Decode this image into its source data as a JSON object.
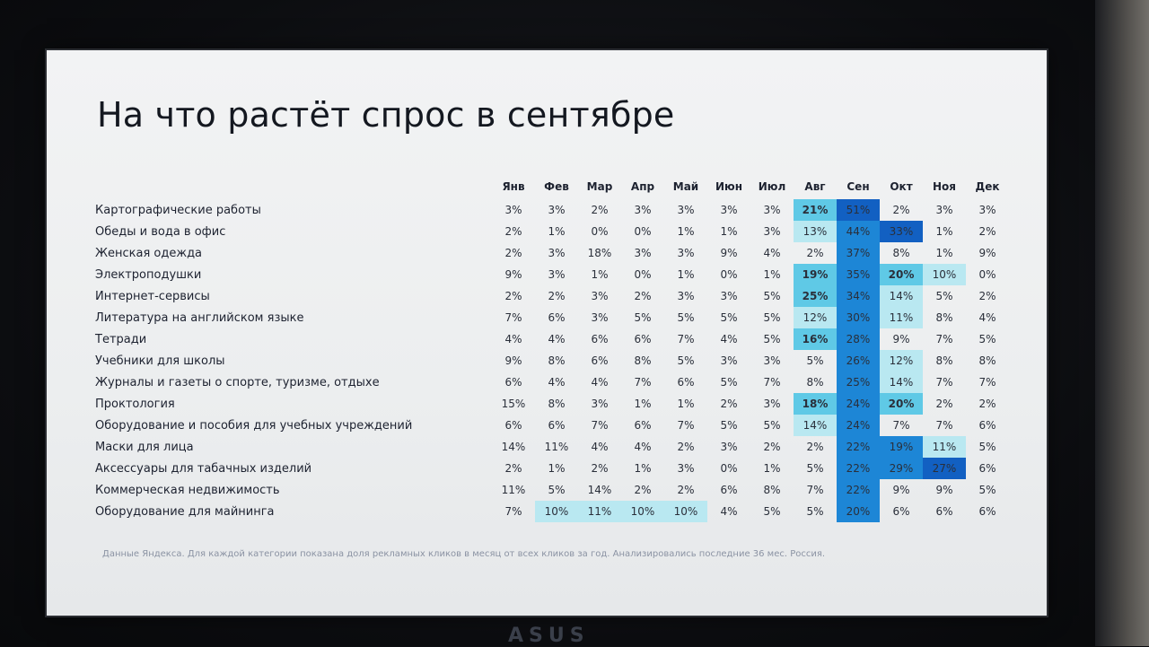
{
  "title": "На что растёт спрос в сентябре",
  "footnote": "Данные Яндекса. Для каждой категории показана доля рекламных кликов в месяц от всех кликов за год. Анализировались последние 36 мес. Россия.",
  "bezel_logo": "ASUS",
  "chart_data": {
    "type": "heatmap",
    "title": "На что растёт спрос в сентябре",
    "unit": "%",
    "columns": [
      "Янв",
      "Фев",
      "Мар",
      "Апр",
      "Май",
      "Июн",
      "Июл",
      "Авг",
      "Сен",
      "Окт",
      "Ноя",
      "Дек"
    ],
    "rows": [
      {
        "category": "Картографические работы",
        "values": [
          3,
          3,
          2,
          3,
          3,
          3,
          3,
          21,
          51,
          2,
          3,
          3
        ]
      },
      {
        "category": "Обеды и вода в офис",
        "values": [
          2,
          1,
          0,
          0,
          1,
          1,
          3,
          13,
          44,
          33,
          1,
          2
        ]
      },
      {
        "category": "Женская одежда",
        "values": [
          2,
          3,
          18,
          3,
          3,
          9,
          4,
          2,
          37,
          8,
          1,
          9
        ]
      },
      {
        "category": "Электроподушки",
        "values": [
          9,
          3,
          1,
          0,
          1,
          0,
          1,
          19,
          35,
          20,
          10,
          0
        ]
      },
      {
        "category": "Интернет-сервисы",
        "values": [
          2,
          2,
          3,
          2,
          3,
          3,
          5,
          25,
          34,
          14,
          5,
          2
        ]
      },
      {
        "category": "Литература на английском языке",
        "values": [
          7,
          6,
          3,
          5,
          5,
          5,
          5,
          12,
          30,
          11,
          8,
          4
        ]
      },
      {
        "category": "Тетради",
        "values": [
          4,
          4,
          6,
          6,
          7,
          4,
          5,
          16,
          28,
          9,
          7,
          5
        ]
      },
      {
        "category": "Учебники для школы",
        "values": [
          9,
          8,
          6,
          8,
          5,
          3,
          3,
          5,
          26,
          12,
          8,
          8
        ]
      },
      {
        "category": "Журналы и газеты о спорте, туризме, отдыхе",
        "values": [
          6,
          4,
          4,
          7,
          6,
          5,
          7,
          8,
          25,
          14,
          7,
          7
        ]
      },
      {
        "category": "Проктология",
        "values": [
          15,
          8,
          3,
          1,
          1,
          2,
          3,
          18,
          24,
          20,
          2,
          2
        ]
      },
      {
        "category": "Оборудование и пособия для учебных учреждений",
        "values": [
          6,
          6,
          7,
          6,
          7,
          5,
          5,
          14,
          24,
          7,
          7,
          6
        ]
      },
      {
        "category": "Маски для лица",
        "values": [
          14,
          11,
          4,
          4,
          2,
          3,
          2,
          2,
          22,
          19,
          11,
          5
        ]
      },
      {
        "category": "Аксессуары для табачных изделий",
        "values": [
          2,
          1,
          2,
          1,
          3,
          0,
          1,
          5,
          22,
          29,
          27,
          6
        ]
      },
      {
        "category": "Коммерческая недвижимость",
        "values": [
          11,
          5,
          14,
          2,
          2,
          6,
          8,
          7,
          22,
          9,
          9,
          5
        ]
      },
      {
        "category": "Оборудование для майнинга",
        "values": [
          7,
          10,
          11,
          10,
          10,
          4,
          5,
          5,
          20,
          6,
          6,
          6
        ]
      }
    ],
    "highlight_cells": [
      {
        "row": 0,
        "col": 7,
        "level": 2
      },
      {
        "row": 0,
        "col": 8,
        "level": 4
      },
      {
        "row": 1,
        "col": 7,
        "level": 1
      },
      {
        "row": 1,
        "col": 8,
        "level": 3
      },
      {
        "row": 1,
        "col": 9,
        "level": 4
      },
      {
        "row": 2,
        "col": 8,
        "level": 3
      },
      {
        "row": 3,
        "col": 7,
        "level": 2
      },
      {
        "row": 3,
        "col": 8,
        "level": 3
      },
      {
        "row": 3,
        "col": 9,
        "level": 2
      },
      {
        "row": 3,
        "col": 10,
        "level": 1
      },
      {
        "row": 4,
        "col": 7,
        "level": 2
      },
      {
        "row": 4,
        "col": 8,
        "level": 3
      },
      {
        "row": 4,
        "col": 9,
        "level": 1
      },
      {
        "row": 5,
        "col": 7,
        "level": 1
      },
      {
        "row": 5,
        "col": 8,
        "level": 3
      },
      {
        "row": 5,
        "col": 9,
        "level": 1
      },
      {
        "row": 6,
        "col": 7,
        "level": 2
      },
      {
        "row": 6,
        "col": 8,
        "level": 3
      },
      {
        "row": 7,
        "col": 8,
        "level": 3
      },
      {
        "row": 7,
        "col": 9,
        "level": 1
      },
      {
        "row": 8,
        "col": 8,
        "level": 3
      },
      {
        "row": 8,
        "col": 9,
        "level": 1
      },
      {
        "row": 9,
        "col": 7,
        "level": 2
      },
      {
        "row": 9,
        "col": 8,
        "level": 3
      },
      {
        "row": 9,
        "col": 9,
        "level": 2
      },
      {
        "row": 10,
        "col": 7,
        "level": 1
      },
      {
        "row": 10,
        "col": 8,
        "level": 3
      },
      {
        "row": 11,
        "col": 8,
        "level": 3
      },
      {
        "row": 11,
        "col": 9,
        "level": 3
      },
      {
        "row": 11,
        "col": 10,
        "level": 1
      },
      {
        "row": 12,
        "col": 8,
        "level": 3
      },
      {
        "row": 12,
        "col": 9,
        "level": 3
      },
      {
        "row": 12,
        "col": 10,
        "level": 4
      },
      {
        "row": 13,
        "col": 8,
        "level": 3
      },
      {
        "row": 14,
        "col": 1,
        "level": 1
      },
      {
        "row": 14,
        "col": 2,
        "level": 1
      },
      {
        "row": 14,
        "col": 3,
        "level": 1
      },
      {
        "row": 14,
        "col": 4,
        "level": 1
      },
      {
        "row": 14,
        "col": 8,
        "level": 3
      }
    ],
    "colors": {
      "level1": "#b9e8f1",
      "level2": "#5fc9e6",
      "level3": "#1d86d6",
      "level4": "#1260c2"
    }
  }
}
